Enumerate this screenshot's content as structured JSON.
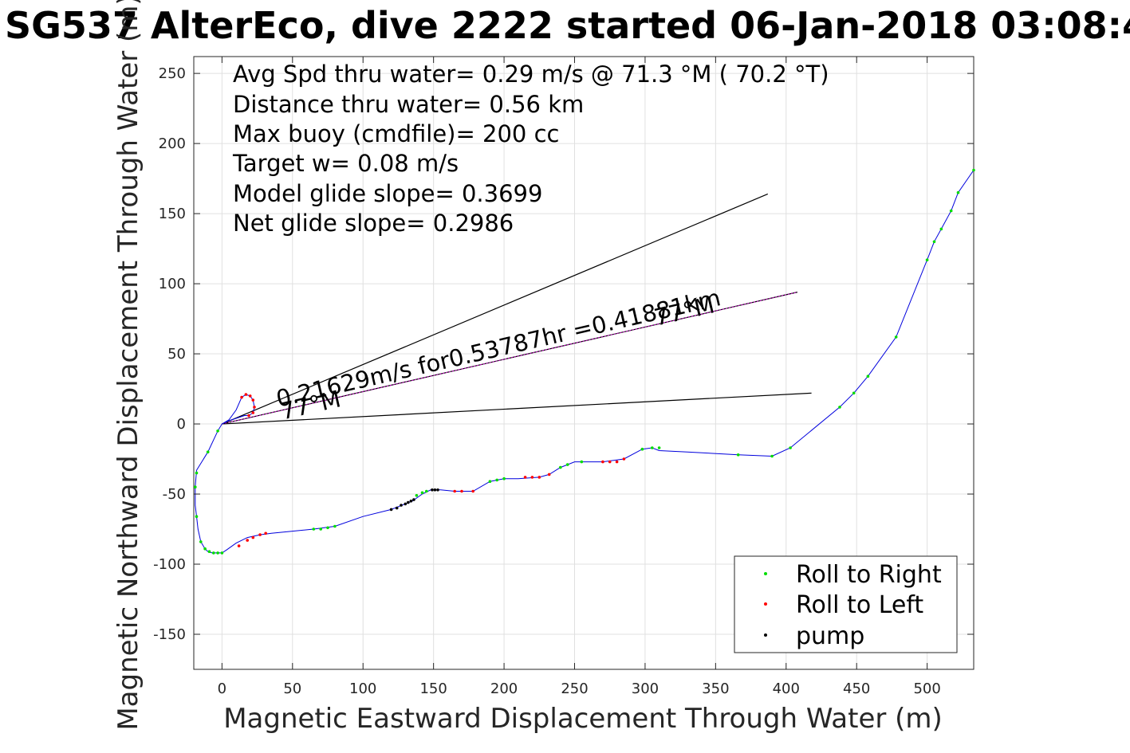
{
  "chart_data": {
    "type": "scatter",
    "title": "SG537 AlterEco, dive 2222 started 06-Jan-2018 03:08:4",
    "xlabel": "Magnetic Eastward Displacement Through Water (m)",
    "ylabel": "Magnetic Northward Displacement Through Water (m)",
    "xlim": [
      -20,
      533
    ],
    "ylim": [
      -175,
      262
    ],
    "x_ticks": [
      0,
      50,
      100,
      150,
      200,
      250,
      300,
      350,
      400,
      450,
      500
    ],
    "y_ticks": [
      -150,
      -100,
      -50,
      0,
      50,
      100,
      150,
      200,
      250
    ],
    "grid": true,
    "stats": [
      "Avg Spd thru water=  0.29 m/s @  71.3 °M ( 70.2 °T)",
      "Distance thru water=  0.56 km",
      "Max buoy (cmdfile)= 200 cc",
      "Target w= 0.08 m/s",
      "Model glide slope= 0.3699",
      "Net glide slope= 0.2986"
    ],
    "legend": {
      "placement": "bottom-right",
      "entries": [
        {
          "label": "Roll to Right",
          "color": "#00dd00"
        },
        {
          "label": "Roll to Left",
          "color": "#ff0000"
        },
        {
          "label": "pump",
          "color": "#000000"
        }
      ]
    },
    "annotations": [
      {
        "text": "0.21629m/s for0.53787hr =0.41881km",
        "x": 40,
        "y": 12,
        "angle_deg": 13
      },
      {
        "text": "77°M",
        "x": 43,
        "y": 3,
        "angle_deg": 13
      },
      {
        "text": "77°M",
        "x": 308,
        "y": 70,
        "angle_deg": 13
      }
    ],
    "reference_lines": [
      {
        "name": "upper",
        "x": [
          0,
          387
        ],
        "y": [
          0,
          164
        ],
        "color": "#000000"
      },
      {
        "name": "lower",
        "x": [
          0,
          418
        ],
        "y": [
          0,
          22
        ],
        "color": "#000000"
      },
      {
        "name": "mean",
        "x": [
          0,
          408
        ],
        "y": [
          0,
          94
        ],
        "color": "#000000",
        "overlay_color": "#cc00cc"
      }
    ],
    "track": {
      "color": "#0000dd",
      "x": [
        0,
        -3,
        -10,
        -18,
        -19,
        -19,
        -18,
        -17,
        -15,
        -12,
        -10,
        -7,
        -4,
        0,
        3,
        10,
        18,
        27,
        35,
        45,
        65,
        80,
        100,
        120,
        135,
        142,
        148,
        155,
        165,
        178,
        190,
        200,
        210,
        225,
        232,
        240,
        250,
        260,
        270,
        285,
        298,
        305,
        310,
        330,
        366,
        390,
        403,
        438,
        448,
        458,
        478,
        500,
        505,
        510,
        517,
        522,
        533
      ],
      "y": [
        0,
        -5,
        -20,
        -33,
        -45,
        -58,
        -66,
        -75,
        -84,
        -89,
        -91,
        -92,
        -92,
        -92,
        -90,
        -85,
        -81,
        -79,
        -78,
        -77,
        -75,
        -73,
        -66,
        -61,
        -55,
        -50,
        -47,
        -47,
        -48,
        -48,
        -41,
        -39,
        -39,
        -38,
        -36,
        -31,
        -27,
        -27,
        -27,
        -25,
        -18,
        -17,
        -19,
        -20,
        -22,
        -23,
        -17,
        12,
        22,
        34,
        62,
        117,
        130,
        139,
        152,
        165,
        181
      ]
    },
    "loop": {
      "color": "#0000dd",
      "x": [
        0,
        5,
        10,
        14,
        17,
        20,
        22,
        23,
        22,
        19,
        16,
        10,
        4,
        0
      ],
      "y": [
        0,
        3,
        10,
        19,
        21,
        20,
        17,
        12,
        8,
        6,
        6,
        4,
        2,
        0
      ]
    },
    "series": [
      {
        "name": "Roll to Right",
        "color": "#00dd00",
        "x": [
          -3,
          -10,
          -18,
          -19,
          -18,
          -15,
          -12,
          -9,
          -6,
          -3,
          0,
          65,
          70,
          75,
          80,
          138,
          142,
          145,
          190,
          195,
          200,
          240,
          245,
          255,
          298,
          305,
          310,
          366,
          390,
          403,
          438,
          448,
          458,
          478,
          500,
          505,
          510,
          517,
          522,
          533
        ],
        "y": [
          -5,
          -20,
          -35,
          -45,
          -66,
          -84,
          -89,
          -91,
          -92,
          -92,
          -92,
          -75,
          -75,
          -74,
          -73,
          -51,
          -49,
          -48,
          -41,
          -40,
          -39,
          -31,
          -29,
          -27,
          -18,
          -17,
          -17,
          -22,
          -23,
          -17,
          12,
          22,
          34,
          62,
          117,
          130,
          139,
          152,
          165,
          181
        ]
      },
      {
        "name": "Roll to Left",
        "color": "#ff0000",
        "x": [
          14,
          17,
          20,
          22,
          23,
          22,
          19,
          12,
          18,
          22,
          27,
          31,
          165,
          170,
          178,
          215,
          220,
          225,
          232,
          270,
          275,
          280,
          285
        ],
        "y": [
          19,
          21,
          20,
          17,
          12,
          8,
          6,
          -87,
          -83,
          -81,
          -79,
          -78,
          -48,
          -48,
          -48,
          -38,
          -38,
          -38,
          -36,
          -27,
          -27,
          -27,
          -25
        ]
      },
      {
        "name": "pump",
        "color": "#000000",
        "x": [
          120,
          124,
          127,
          130,
          132,
          134,
          136,
          149,
          151,
          153
        ],
        "y": [
          -61,
          -60,
          -58,
          -57,
          -56,
          -55,
          -54,
          -47,
          -47,
          -47
        ]
      }
    ]
  }
}
